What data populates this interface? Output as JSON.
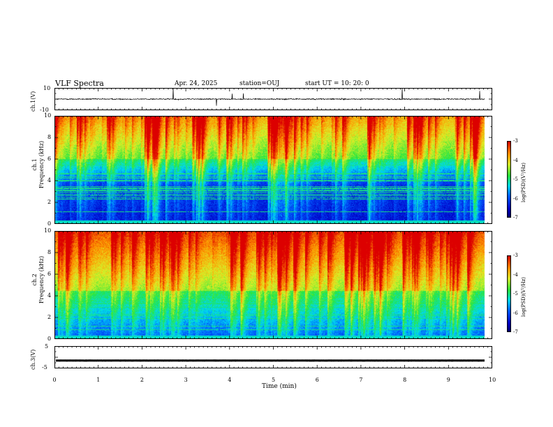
{
  "header": {
    "title": "VLF Spectra",
    "date": "Apr. 24, 2025",
    "station": "station=OUJ",
    "start": "start  UT  =   10: 20: 0"
  },
  "chart_data": [
    {
      "type": "line",
      "name": "ch1-waveform",
      "ylabel": "ch.1(V)",
      "ylim": [
        -10,
        10
      ],
      "tick_labels": [
        "10",
        "-10"
      ],
      "xlim": [
        0,
        10
      ],
      "baseline": 0,
      "x_end": 9.83
    },
    {
      "type": "heatmap",
      "name": "ch1-spectrogram",
      "ylabel_top": "ch.1",
      "ylabel": "Frequency (kHz)",
      "ylim": [
        0,
        10
      ],
      "yticks": [
        "0",
        "2",
        "4",
        "6",
        "8",
        "10"
      ],
      "xlim": [
        0,
        10
      ],
      "x_end": 9.83,
      "colorbar": {
        "label": "log(PSD)(V²/Hz)",
        "range": [
          -7,
          -3
        ],
        "ticks": [
          "-3",
          "-4",
          "-5",
          "-6",
          "-7"
        ]
      }
    },
    {
      "type": "heatmap",
      "name": "ch2-spectrogram",
      "ylabel_top": "ch.2",
      "ylabel": "Frequency (kHz)",
      "ylim": [
        0,
        10
      ],
      "yticks": [
        "0",
        "2",
        "4",
        "6",
        "8",
        "10"
      ],
      "xlim": [
        0,
        10
      ],
      "x_end": 9.83,
      "colorbar": {
        "label": "log(PSD)(V²/Hz)",
        "range": [
          -7,
          -3
        ],
        "ticks": [
          "-3",
          "-4",
          "-5",
          "-6",
          "-7"
        ]
      }
    },
    {
      "type": "line",
      "name": "ch3-waveform",
      "ylabel": "ch.3(V)",
      "ylim": [
        -5,
        5
      ],
      "tick_labels": [
        "5",
        "-5"
      ],
      "xlim": [
        0,
        10
      ],
      "baseline": -1.5,
      "x_end": 9.83
    }
  ],
  "xaxis": {
    "label": "Time (min)",
    "ticks": [
      "0",
      "1",
      "2",
      "3",
      "4",
      "5",
      "6",
      "7",
      "8",
      "9",
      "10"
    ]
  }
}
